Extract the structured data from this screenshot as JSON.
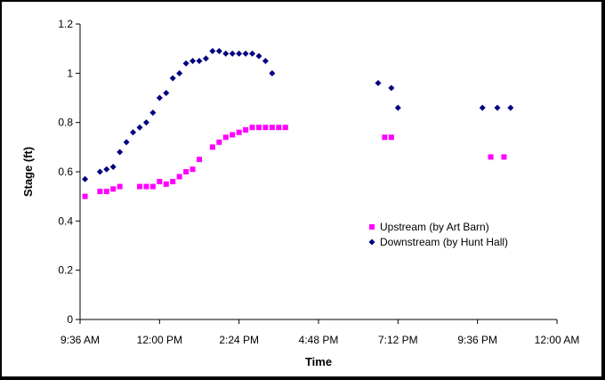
{
  "chart_data": {
    "type": "scatter",
    "title": "",
    "xlabel": "Time",
    "ylabel": "Stage (ft)",
    "xlim": [
      "9:36 AM",
      "12:00 AM"
    ],
    "ylim": [
      0,
      1.2
    ],
    "x_ticks": [
      "9:36 AM",
      "12:00 PM",
      "2:24 PM",
      "4:48 PM",
      "7:12 PM",
      "9:36 PM",
      "12:00 AM"
    ],
    "y_ticks": [
      "0",
      "0.2",
      "0.4",
      "0.6",
      "0.8",
      "1",
      "1.2"
    ],
    "grid": false,
    "legend_position": "lower-right",
    "series": [
      {
        "name": "Upstream (by Art Barn)",
        "color": "#ff00ff",
        "marker": "square",
        "points": [
          [
            "9:45 AM",
            0.5
          ],
          [
            "10:12 AM",
            0.52
          ],
          [
            "10:24 AM",
            0.52
          ],
          [
            "10:36 AM",
            0.53
          ],
          [
            "10:48 AM",
            0.54
          ],
          [
            "11:24 AM",
            0.54
          ],
          [
            "11:36 AM",
            0.54
          ],
          [
            "11:48 AM",
            0.54
          ],
          [
            "12:00 PM",
            0.56
          ],
          [
            "12:12 PM",
            0.55
          ],
          [
            "12:24 PM",
            0.56
          ],
          [
            "12:36 PM",
            0.58
          ],
          [
            "12:48 PM",
            0.6
          ],
          [
            "1:00 PM",
            0.61
          ],
          [
            "1:12 PM",
            0.65
          ],
          [
            "1:36 PM",
            0.7
          ],
          [
            "1:48 PM",
            0.72
          ],
          [
            "2:00 PM",
            0.74
          ],
          [
            "2:12 PM",
            0.75
          ],
          [
            "2:24 PM",
            0.76
          ],
          [
            "2:36 PM",
            0.77
          ],
          [
            "2:48 PM",
            0.78
          ],
          [
            "3:00 PM",
            0.78
          ],
          [
            "3:12 PM",
            0.78
          ],
          [
            "3:24 PM",
            0.78
          ],
          [
            "3:36 PM",
            0.78
          ],
          [
            "3:48 PM",
            0.78
          ],
          [
            "6:48 PM",
            0.74
          ],
          [
            "7:00 PM",
            0.74
          ],
          [
            "10:00 PM",
            0.66
          ],
          [
            "10:24 PM",
            0.66
          ]
        ]
      },
      {
        "name": "Downstream (by Hunt Hall)",
        "color": "#000080",
        "marker": "diamond",
        "points": [
          [
            "9:45 AM",
            0.57
          ],
          [
            "10:12 AM",
            0.6
          ],
          [
            "10:24 AM",
            0.61
          ],
          [
            "10:36 AM",
            0.62
          ],
          [
            "10:48 AM",
            0.68
          ],
          [
            "11:00 AM",
            0.72
          ],
          [
            "11:12 AM",
            0.76
          ],
          [
            "11:24 AM",
            0.78
          ],
          [
            "11:36 AM",
            0.8
          ],
          [
            "11:48 AM",
            0.84
          ],
          [
            "12:00 PM",
            0.9
          ],
          [
            "12:12 PM",
            0.92
          ],
          [
            "12:24 PM",
            0.98
          ],
          [
            "12:36 PM",
            1.0
          ],
          [
            "12:48 PM",
            1.04
          ],
          [
            "1:00 PM",
            1.05
          ],
          [
            "1:12 PM",
            1.05
          ],
          [
            "1:24 PM",
            1.06
          ],
          [
            "1:36 PM",
            1.09
          ],
          [
            "1:48 PM",
            1.09
          ],
          [
            "2:00 PM",
            1.08
          ],
          [
            "2:12 PM",
            1.08
          ],
          [
            "2:24 PM",
            1.08
          ],
          [
            "2:36 PM",
            1.08
          ],
          [
            "2:48 PM",
            1.08
          ],
          [
            "3:00 PM",
            1.07
          ],
          [
            "3:12 PM",
            1.05
          ],
          [
            "3:24 PM",
            1.0
          ],
          [
            "6:36 PM",
            0.96
          ],
          [
            "7:00 PM",
            0.94
          ],
          [
            "7:12 PM",
            0.86
          ],
          [
            "9:45 PM",
            0.86
          ],
          [
            "10:12 PM",
            0.86
          ],
          [
            "10:36 PM",
            0.86
          ]
        ]
      }
    ]
  }
}
